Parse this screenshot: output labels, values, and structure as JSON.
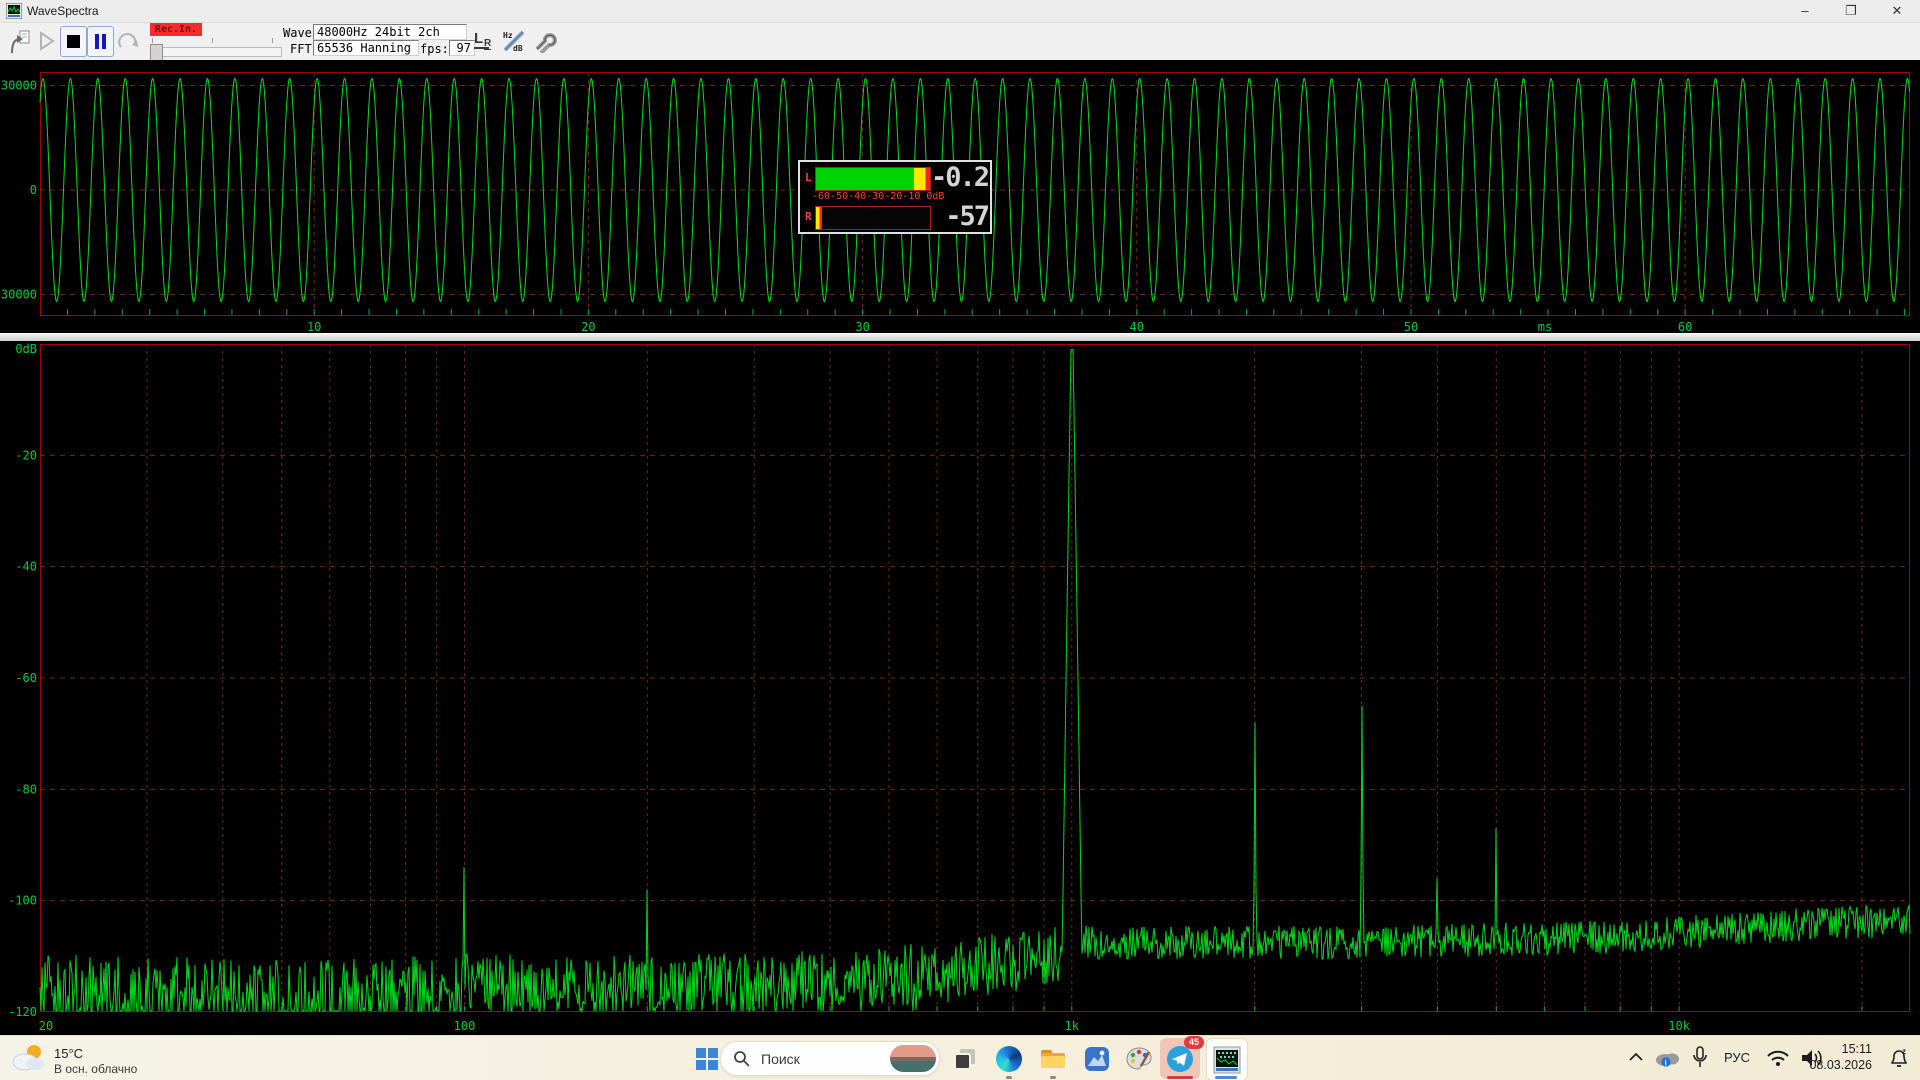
{
  "window": {
    "title": "WaveSpectra",
    "minimize": "–",
    "restore": "❐",
    "close": "✕"
  },
  "toolbar": {
    "rec_label": "Rec.In.",
    "wave_label": "Wave:",
    "wave_value": "48000Hz 24bit 2ch",
    "fft_label": "FFT:",
    "fft_value": "65536 Hanning",
    "fps_label": "fps:",
    "fps_value": "97",
    "lr_big": "L",
    "lr_small": "R",
    "hz_text": "Hz",
    "db_text": "dB"
  },
  "meter": {
    "l_label": "L",
    "r_label": "R",
    "l_text": "-0.2",
    "r_text": "-57",
    "l_db": -0.2,
    "r_db": -57,
    "range_db": 60,
    "scale": "-60-50-40-30-20-10 0dB"
  },
  "chart_data": [
    {
      "type": "line",
      "name": "waveform-oscilloscope",
      "x_unit": "ms",
      "x_ticks_ms": [
        10,
        20,
        30,
        40,
        50,
        60
      ],
      "x_range_ms": [
        0,
        68.2
      ],
      "y_ticks": [
        30000,
        0,
        -30000
      ],
      "y_range": [
        -34500,
        34500
      ],
      "signal": {
        "shape": "sine",
        "frequency_hz": 1000,
        "amplitude_counts": 32000
      },
      "grid": "dashed-red",
      "trace_color": "#00e118",
      "label_color": "#00cd33"
    },
    {
      "type": "line",
      "name": "fft-spectrum",
      "x_scale": "log",
      "x_range_hz": [
        20,
        24000
      ],
      "x_ticks": [
        {
          "label": "20",
          "hz": 20
        },
        {
          "label": "100",
          "hz": 100
        },
        {
          "label": "1k",
          "hz": 1000
        },
        {
          "label": "10k",
          "hz": 10000
        }
      ],
      "y_ticks": [
        {
          "label": "0dB",
          "db": 0
        },
        {
          "label": "-20",
          "db": -20
        },
        {
          "label": "-40",
          "db": -40
        },
        {
          "label": "-60",
          "db": -60
        },
        {
          "label": "-80",
          "db": -80
        },
        {
          "label": "-100",
          "db": -100
        },
        {
          "label": "-120",
          "db": -120
        }
      ],
      "y_range_db": [
        -120,
        0
      ],
      "peaks_db": [
        {
          "hz": 1000,
          "db": -1,
          "width": "wide"
        },
        {
          "hz": 2000,
          "db": -68,
          "width": "narrow"
        },
        {
          "hz": 3000,
          "db": -65,
          "width": "narrow"
        },
        {
          "hz": 4000,
          "db": -96,
          "width": "narrow"
        },
        {
          "hz": 5000,
          "db": -87,
          "width": "narrow"
        },
        {
          "hz": 100,
          "db": -94,
          "width": "spur"
        },
        {
          "hz": 200,
          "db": -98,
          "width": "spur"
        }
      ],
      "noise_floor_db": [
        [
          20,
          -113
        ],
        [
          60,
          -114
        ],
        [
          100,
          -113
        ],
        [
          300,
          -113
        ],
        [
          600,
          -111
        ],
        [
          900,
          -108
        ],
        [
          1500,
          -108
        ],
        [
          3000,
          -108
        ],
        [
          8000,
          -107
        ],
        [
          15000,
          -105
        ],
        [
          24000,
          -104
        ]
      ],
      "grid": "dashed-red",
      "trace_color": "#00d81e",
      "label_color": "#00cd33"
    }
  ],
  "taskbar": {
    "weather": {
      "temp": "15°C",
      "condition": "В осн. облачно"
    },
    "search_placeholder": "Поиск",
    "telegram_badge": "45",
    "tray": {
      "lang": "РУС",
      "time": "15:11",
      "date": "08.03.2026"
    }
  },
  "colors": {
    "trace_green": "#00e118",
    "axis_green": "#00cd33",
    "border_red": "#9c0606",
    "grid_red": "#6e2626",
    "meter_green": "#00d400",
    "meter_yellow": "#ffe800",
    "meter_red": "#ff2020",
    "accent_blue": "#4b8bd4"
  }
}
